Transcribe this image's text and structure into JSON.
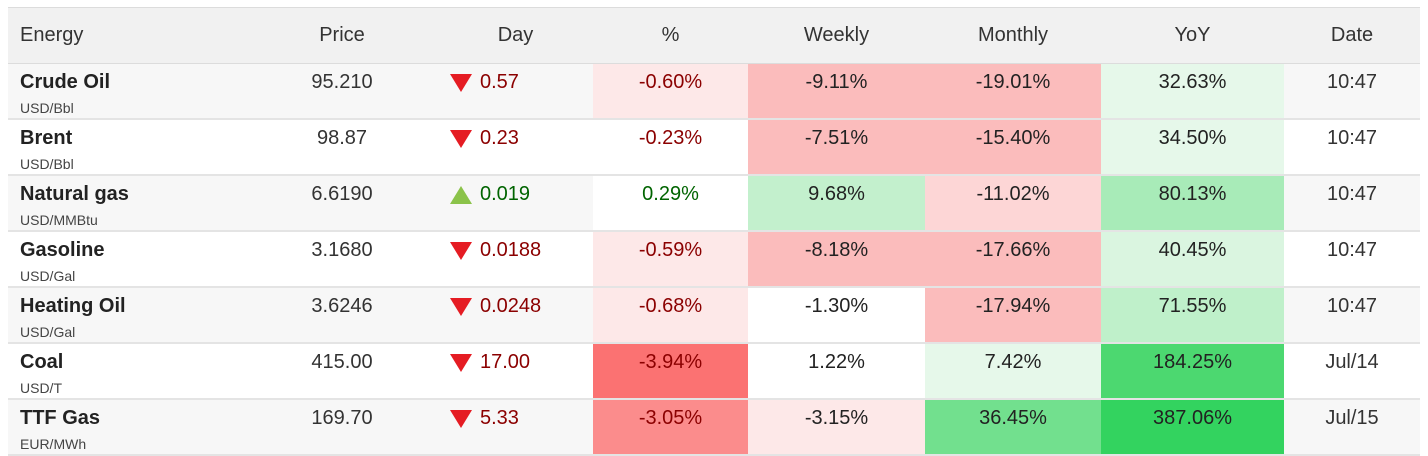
{
  "headers": {
    "energy": "Energy",
    "price": "Price",
    "day": "Day",
    "pct": "%",
    "weekly": "Weekly",
    "monthly": "Monthly",
    "yoy": "YoY",
    "date": "Date"
  },
  "colors": {
    "down_arrow": "#e51c23",
    "up_arrow": "#8bc34a",
    "negative_text": "#8b0000",
    "positive_text": "#006400"
  },
  "rows": [
    {
      "name": "Crude Oil",
      "unit": "USD/Bbl",
      "price": "95.210",
      "day_dir": "down",
      "day": "0.57",
      "pct": "-0.60%",
      "pct_bg": "#fde8e8",
      "weekly": "-9.11%",
      "weekly_bg": "#fbbcbc",
      "monthly": "-19.01%",
      "monthly_bg": "#fbbcbc",
      "yoy": "32.63%",
      "yoy_bg": "#e6f8ea",
      "date": "10:47"
    },
    {
      "name": "Brent",
      "unit": "USD/Bbl",
      "price": "98.87",
      "day_dir": "down",
      "day": "0.23",
      "pct": "-0.23%",
      "pct_bg": "#ffffff",
      "weekly": "-7.51%",
      "weekly_bg": "#fbbcbc",
      "monthly": "-15.40%",
      "monthly_bg": "#fbbcbc",
      "yoy": "34.50%",
      "yoy_bg": "#e6f8ea",
      "date": "10:47"
    },
    {
      "name": "Natural gas",
      "unit": "USD/MMBtu",
      "price": "6.6190",
      "day_dir": "up",
      "day": "0.019",
      "pct": "0.29%",
      "pct_bg": "#ffffff",
      "weekly": "9.68%",
      "weekly_bg": "#c3f0cd",
      "monthly": "-11.02%",
      "monthly_bg": "#fdd6d6",
      "yoy": "80.13%",
      "yoy_bg": "#a8ebb8",
      "date": "10:47"
    },
    {
      "name": "Gasoline",
      "unit": "USD/Gal",
      "price": "3.1680",
      "day_dir": "down",
      "day": "0.0188",
      "pct": "-0.59%",
      "pct_bg": "#fde8e8",
      "weekly": "-8.18%",
      "weekly_bg": "#fbbcbc",
      "monthly": "-17.66%",
      "monthly_bg": "#fbbcbc",
      "yoy": "40.45%",
      "yoy_bg": "#daf5e0",
      "date": "10:47"
    },
    {
      "name": "Heating Oil",
      "unit": "USD/Gal",
      "price": "3.6246",
      "day_dir": "down",
      "day": "0.0248",
      "pct": "-0.68%",
      "pct_bg": "#fde8e8",
      "weekly": "-1.30%",
      "weekly_bg": "#ffffff",
      "monthly": "-17.94%",
      "monthly_bg": "#fbbcbc",
      "yoy": "71.55%",
      "yoy_bg": "#bff0ca",
      "date": "10:47"
    },
    {
      "name": "Coal",
      "unit": "USD/T",
      "price": "415.00",
      "day_dir": "down",
      "day": "17.00",
      "pct": "-3.94%",
      "pct_bg": "#fb7272",
      "weekly": "1.22%",
      "weekly_bg": "#ffffff",
      "monthly": "7.42%",
      "monthly_bg": "#e6f8ea",
      "yoy": "184.25%",
      "yoy_bg": "#4cd870",
      "date": "Jul/14"
    },
    {
      "name": "TTF Gas",
      "unit": "EUR/MWh",
      "price": "169.70",
      "day_dir": "down",
      "day": "5.33",
      "pct": "-3.05%",
      "pct_bg": "#fb8c8c",
      "weekly": "-3.15%",
      "weekly_bg": "#fde8e8",
      "monthly": "36.45%",
      "monthly_bg": "#72e08e",
      "yoy": "387.06%",
      "yoy_bg": "#33d35f",
      "date": "Jul/15"
    }
  ]
}
